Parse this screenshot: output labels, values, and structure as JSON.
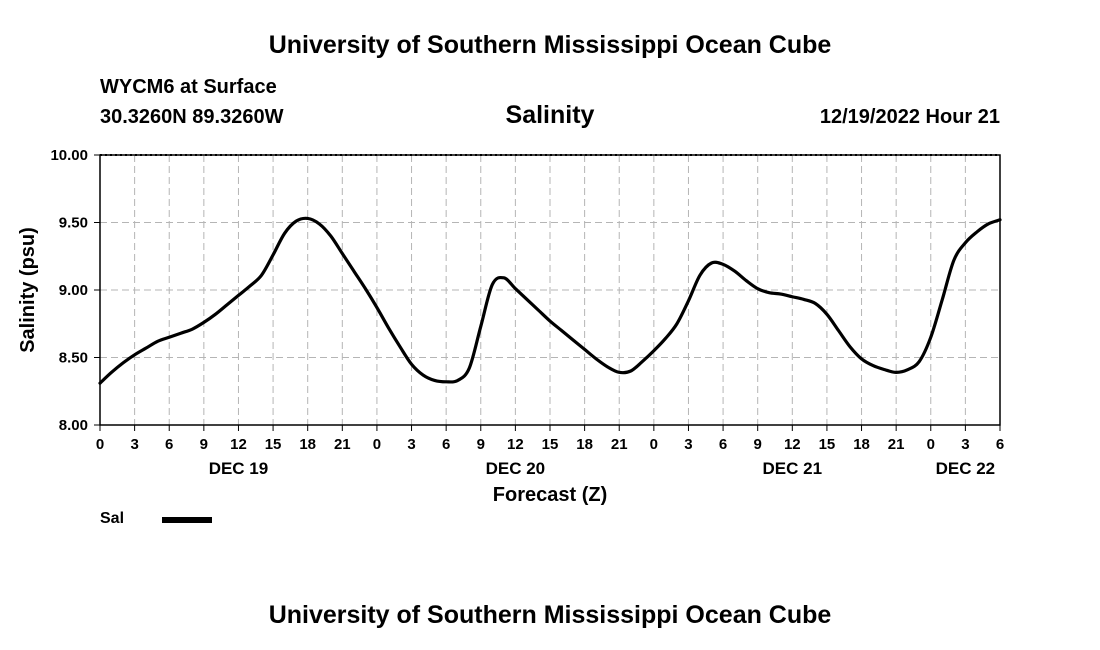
{
  "header": {
    "title": "University of Southern Mississippi Ocean Cube",
    "station": "WYCM6 at Surface",
    "coords": "30.3260N  89.3260W",
    "timestamp": "12/19/2022 Hour 21"
  },
  "footer": {
    "title": "University of Southern Mississippi Ocean Cube"
  },
  "legend": {
    "label": "Sal"
  },
  "chart_data": {
    "type": "line",
    "title": "Salinity",
    "xlabel": "Forecast (Z)",
    "ylabel": "Salinity (psu)",
    "ylim": [
      8.0,
      10.0
    ],
    "xlim": [
      0,
      78
    ],
    "y_ticks": [
      "8.00",
      "8.50",
      "9.00",
      "9.50",
      "10.00"
    ],
    "x_tick_labels": [
      "0",
      "3",
      "6",
      "9",
      "12",
      "15",
      "18",
      "21",
      "0",
      "3",
      "6",
      "9",
      "12",
      "15",
      "18",
      "21",
      "0",
      "3",
      "6",
      "9",
      "12",
      "15",
      "18",
      "21",
      "0",
      "3",
      "6"
    ],
    "day_labels": [
      {
        "label": "DEC 19",
        "hour": 12
      },
      {
        "label": "DEC 20",
        "hour": 36
      },
      {
        "label": "DEC 21",
        "hour": 60
      },
      {
        "label": "DEC 22",
        "hour": 75
      }
    ],
    "grid": true,
    "series": [
      {
        "name": "Sal",
        "color": "#000000",
        "x": [
          0,
          1,
          2,
          3,
          4,
          5,
          6,
          7,
          8,
          9,
          10,
          11,
          12,
          13,
          14,
          15,
          16,
          17,
          18,
          19,
          20,
          21,
          22,
          23,
          24,
          25,
          26,
          27,
          28,
          29,
          30,
          31,
          32,
          33,
          34,
          35,
          36,
          37,
          38,
          39,
          40,
          41,
          42,
          43,
          44,
          45,
          46,
          47,
          48,
          49,
          50,
          51,
          52,
          53,
          54,
          55,
          56,
          57,
          58,
          59,
          60,
          61,
          62,
          63,
          64,
          65,
          66,
          67,
          68,
          69,
          70,
          71,
          72,
          73,
          74,
          75,
          76,
          77,
          78
        ],
        "values": [
          8.31,
          8.39,
          8.46,
          8.52,
          8.57,
          8.62,
          8.65,
          8.68,
          8.71,
          8.76,
          8.82,
          8.89,
          8.96,
          9.03,
          9.11,
          9.26,
          9.42,
          9.51,
          9.53,
          9.49,
          9.4,
          9.27,
          9.14,
          9.01,
          8.87,
          8.72,
          8.58,
          8.45,
          8.37,
          8.33,
          8.32,
          8.33,
          8.42,
          8.73,
          9.04,
          9.09,
          9.01,
          8.93,
          8.85,
          8.77,
          8.7,
          8.63,
          8.56,
          8.49,
          8.43,
          8.39,
          8.4,
          8.47,
          8.55,
          8.64,
          8.75,
          8.92,
          9.11,
          9.2,
          9.19,
          9.14,
          9.07,
          9.01,
          8.98,
          8.97,
          8.95,
          8.93,
          8.9,
          8.82,
          8.7,
          8.58,
          8.49,
          8.44,
          8.41,
          8.39,
          8.41,
          8.47,
          8.65,
          8.93,
          9.22,
          9.35,
          9.43,
          9.49,
          9.52
        ]
      }
    ]
  }
}
